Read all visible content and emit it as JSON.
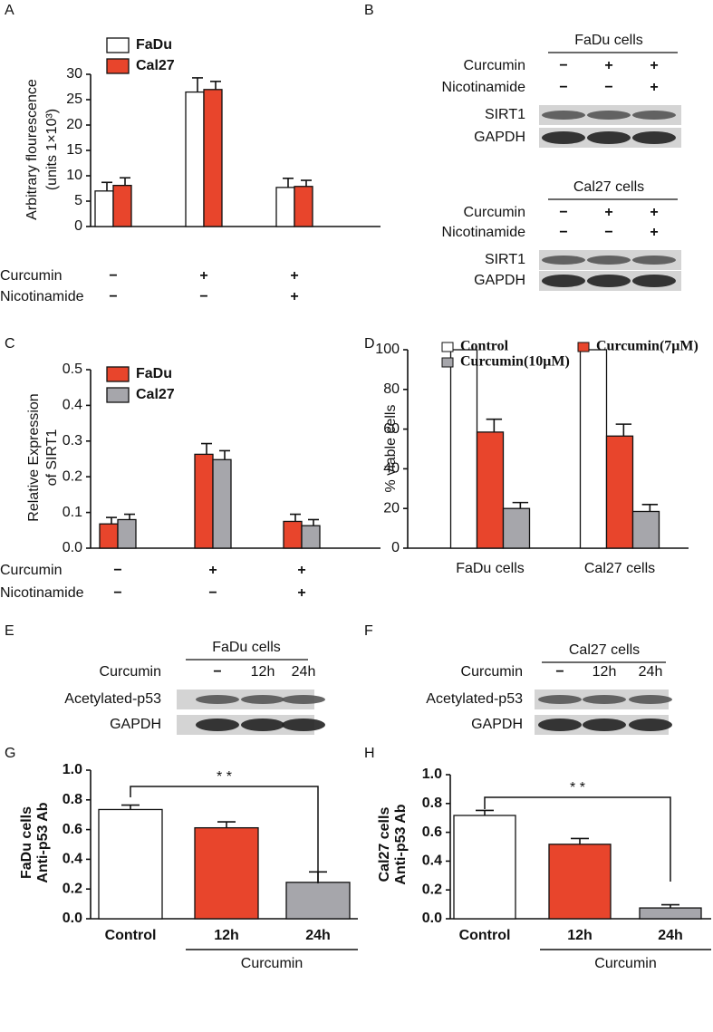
{
  "chart_data": [
    {
      "panel": "A",
      "type": "bar",
      "ylabel": [
        "Arbitrary flourescence",
        "(units 1×10³)"
      ],
      "categories": [
        null,
        null,
        null
      ],
      "series": [
        {
          "name": "FaDu",
          "color": "#ffffff",
          "values": [
            7,
            26.5,
            7.7
          ],
          "errors": [
            1.7,
            2.8,
            1.8
          ]
        },
        {
          "name": "Cal27",
          "color": "#e8452c",
          "values": [
            8.1,
            27,
            7.9
          ],
          "errors": [
            1.5,
            1.6,
            1.2
          ]
        }
      ],
      "ylim": [
        0,
        30
      ],
      "yticks": [
        0,
        5,
        10,
        15,
        20,
        25,
        30
      ],
      "conditions": [
        {
          "label": "Curcumin",
          "signs": [
            "−",
            "+",
            "+"
          ]
        },
        {
          "label": "Nicotinamide",
          "signs": [
            "−",
            "−",
            "+"
          ]
        }
      ]
    },
    {
      "panel": "C",
      "type": "bar",
      "ylabel": [
        "Relative Expression",
        "of SIRT1"
      ],
      "categories": [
        null,
        null,
        null
      ],
      "series": [
        {
          "name": "FaDu",
          "color": "#e8452c",
          "values": [
            0.068,
            0.263,
            0.075
          ],
          "errors": [
            0.018,
            0.03,
            0.02
          ]
        },
        {
          "name": "Cal27",
          "color": "#a6a6ab",
          "values": [
            0.08,
            0.248,
            0.063
          ],
          "errors": [
            0.015,
            0.025,
            0.017
          ]
        }
      ],
      "ylim": [
        0,
        0.5
      ],
      "yticks": [
        {
          "value": 0,
          "label": "0.0"
        },
        0.1,
        0.2,
        0.3,
        0.4,
        0.5
      ],
      "conditions": [
        {
          "label": "Curcumin",
          "signs": [
            "−",
            "+",
            "+"
          ]
        },
        {
          "label": "Nicotinamide",
          "signs": [
            "−",
            "−",
            "+"
          ]
        }
      ]
    },
    {
      "panel": "D",
      "type": "bar",
      "ylabel": [
        "% viable cells"
      ],
      "categories": [
        "FaDu cells",
        "Cal27 cells"
      ],
      "series": [
        {
          "name": "Control",
          "color": "#ffffff",
          "values": [
            100,
            100
          ]
        },
        {
          "name": "Curcumin(7μM)",
          "color": "#e8452c",
          "values": [
            58.5,
            56.5
          ],
          "errors": [
            6.5,
            6
          ]
        },
        {
          "name": "Curcumin(10μM)",
          "color": "#a6a6ab",
          "values": [
            20,
            18.5
          ],
          "errors": [
            3,
            3.5
          ]
        }
      ],
      "ylim": [
        0,
        100
      ],
      "yticks": [
        0,
        20,
        40,
        60,
        80,
        100
      ]
    },
    {
      "panel": "G",
      "type": "bar",
      "ylabel": [
        "FaDu cells",
        "Anti-p53 Ab"
      ],
      "categories": [
        "Control",
        "12h",
        "24h"
      ],
      "values": [
        0.735,
        0.612,
        0.245
      ],
      "errors": [
        0.03,
        0.04,
        0.07
      ],
      "colors": [
        "#ffffff",
        "#e8452c",
        "#a6a6ab"
      ],
      "ylim": [
        0,
        1
      ],
      "yticks": [
        {
          "value": 0,
          "label": "0.0"
        },
        0.2,
        0.4,
        0.6,
        0.8,
        {
          "value": 1,
          "label": "1.0"
        }
      ],
      "annotation": "* *",
      "group_label": "Curcumin"
    },
    {
      "panel": "H",
      "type": "bar",
      "ylabel": [
        "Cal27 cells",
        "Anti-p53 Ab"
      ],
      "categories": [
        "Control",
        "12h",
        "24h"
      ],
      "values": [
        0.717,
        0.517,
        0.075
      ],
      "errors": [
        0.035,
        0.04,
        0.022
      ],
      "colors": [
        "#ffffff",
        "#e8452c",
        "#a6a6ab"
      ],
      "ylim": [
        0,
        1
      ],
      "yticks": [
        {
          "value": 0,
          "label": "0.0"
        },
        0.2,
        0.4,
        0.6,
        0.8,
        {
          "value": 1,
          "label": "1.0"
        }
      ],
      "annotation": "* *",
      "group_label": "Curcumin"
    }
  ],
  "blots": [
    {
      "panel": "B",
      "groups": [
        {
          "title": "FaDu cells",
          "conditions": [
            {
              "label": "Curcumin",
              "signs": [
                "−",
                "+",
                "+"
              ]
            },
            {
              "label": "Nicotinamide",
              "signs": [
                "−",
                "−",
                "+"
              ]
            }
          ],
          "bands": [
            "SIRT1",
            "GAPDH"
          ]
        },
        {
          "title": "Cal27 cells",
          "conditions": [
            {
              "label": "Curcumin",
              "signs": [
                "−",
                "+",
                "+"
              ]
            },
            {
              "label": "Nicotinamide",
              "signs": [
                "−",
                "−",
                "+"
              ]
            }
          ],
          "bands": [
            "SIRT1",
            "GAPDH"
          ]
        }
      ]
    },
    {
      "panel": "E",
      "groups": [
        {
          "title": "FaDu cells",
          "conditions": [
            {
              "label": "Curcumin",
              "signs": [
                "−",
                "12h",
                "24h"
              ]
            }
          ],
          "bands": [
            "Acetylated-p53",
            "GAPDH"
          ]
        }
      ]
    },
    {
      "panel": "F",
      "groups": [
        {
          "title": "Cal27 cells",
          "conditions": [
            {
              "label": "Curcumin",
              "signs": [
                "−",
                "12h",
                "24h"
              ]
            }
          ],
          "bands": [
            "Acetylated-p53",
            "GAPDH"
          ]
        }
      ]
    }
  ]
}
